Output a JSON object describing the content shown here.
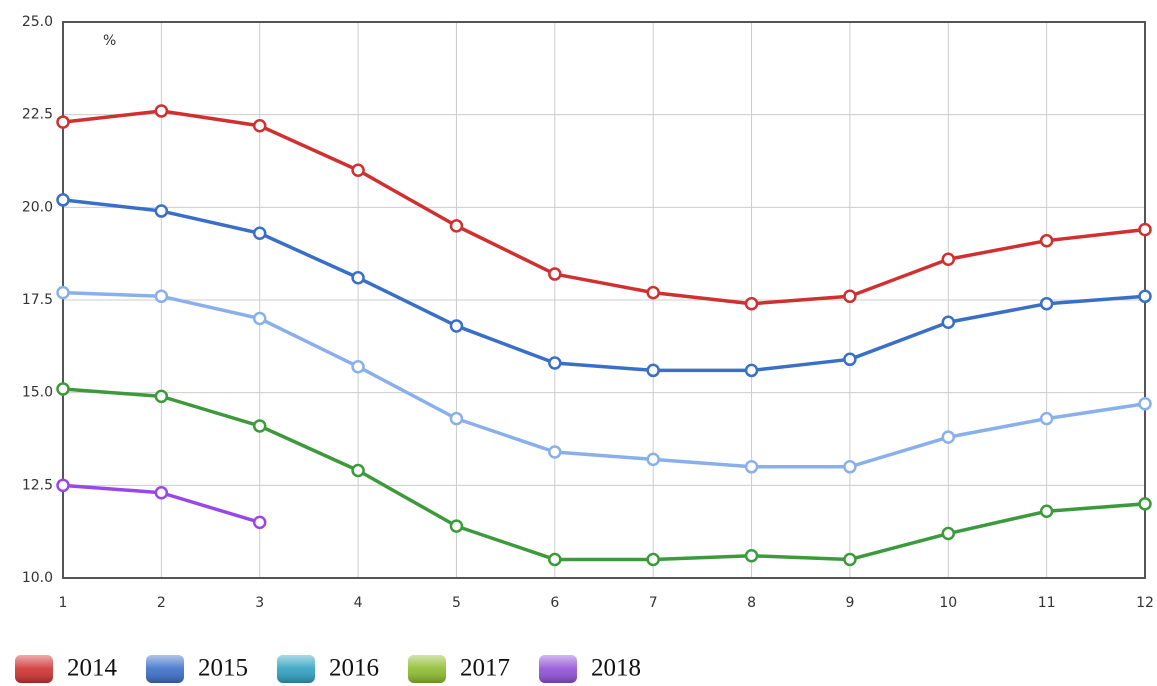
{
  "chart_data": {
    "type": "line",
    "annotation": "%",
    "x": [
      1,
      2,
      3,
      4,
      5,
      6,
      7,
      8,
      9,
      10,
      11,
      12
    ],
    "series": [
      {
        "name": "2014",
        "color": "#d03030",
        "legend_color": "#d03030",
        "values": [
          22.3,
          22.6,
          22.2,
          21.0,
          19.5,
          18.2,
          17.7,
          17.4,
          17.6,
          18.6,
          19.1,
          19.4
        ]
      },
      {
        "name": "2015",
        "color": "#3a6fc8",
        "legend_color": "#3a6fc8",
        "values": [
          20.2,
          19.9,
          19.3,
          18.1,
          16.8,
          15.8,
          15.6,
          15.6,
          15.9,
          16.9,
          17.4,
          17.6
        ]
      },
      {
        "name": "2016",
        "color": "#8ab0ec",
        "legend_color": "#2ea0c0",
        "values": [
          17.7,
          17.6,
          17.0,
          15.7,
          14.3,
          13.4,
          13.2,
          13.0,
          13.0,
          13.8,
          14.3,
          14.7
        ]
      },
      {
        "name": "2017",
        "color": "#3c9a3c",
        "legend_color": "#8cbc2c",
        "values": [
          15.1,
          14.9,
          14.1,
          12.9,
          11.4,
          10.5,
          10.5,
          10.6,
          10.5,
          11.2,
          11.8,
          12.0
        ]
      },
      {
        "name": "2018",
        "color": "#9848e8",
        "legend_color": "#9050d8",
        "values": [
          12.5,
          12.3,
          11.5,
          null,
          null,
          null,
          null,
          null,
          null,
          null,
          null,
          null
        ]
      }
    ],
    "xlim": [
      1,
      12
    ],
    "xticks": [
      1,
      2,
      3,
      4,
      5,
      6,
      7,
      8,
      9,
      10,
      11,
      12
    ],
    "ylim": [
      10,
      25
    ],
    "yticks": [
      {
        "value": 10,
        "label": "10.0"
      },
      {
        "value": 12.5,
        "label": "12.5"
      },
      {
        "value": 15,
        "label": "15.0"
      },
      {
        "value": 17.5,
        "label": "17.5"
      },
      {
        "value": 20,
        "label": "20.0"
      },
      {
        "value": 22.5,
        "label": "22.5"
      },
      {
        "value": 25,
        "label": "25.0"
      }
    ],
    "grid": true,
    "legend": "bottom"
  }
}
